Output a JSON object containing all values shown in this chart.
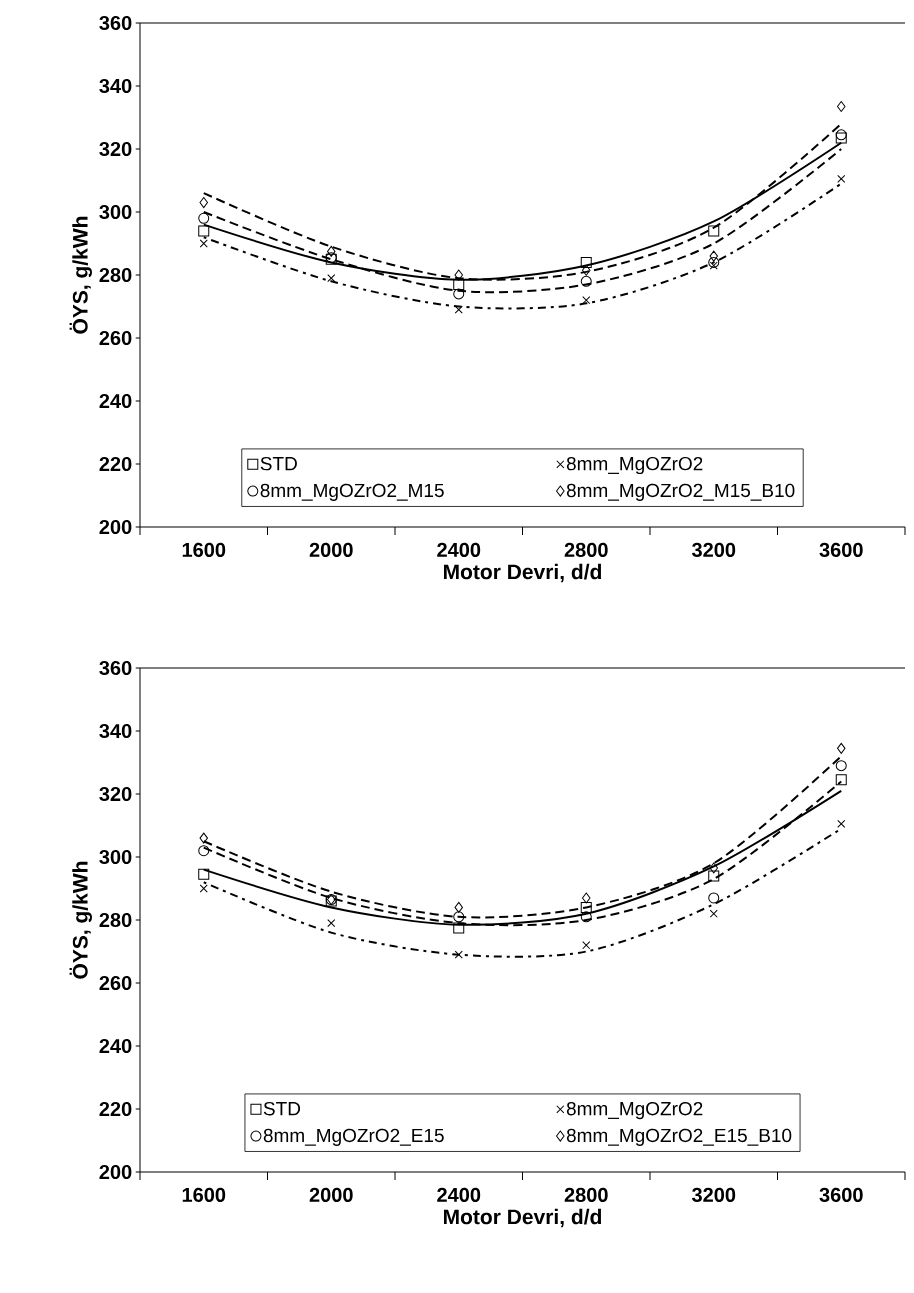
{
  "chart_data": [
    {
      "type": "scatter",
      "xlabel": "Motor Devri, d/d",
      "ylabel": "ÖYS, g/kWh",
      "categories": [
        "1600",
        "2000",
        "2400",
        "2800",
        "3200",
        "3600"
      ],
      "ylim": [
        200,
        360
      ],
      "yticks": [
        200,
        220,
        240,
        260,
        280,
        300,
        320,
        340,
        360
      ],
      "legend": "bottom",
      "series": [
        {
          "name": "STD",
          "color": "#000000",
          "marker": "square",
          "values": [
            294,
            285,
            277,
            284,
            294,
            323.5
          ]
        },
        {
          "name": "8mm_MgOZrO2",
          "color": "#000000",
          "marker": "cross",
          "values": [
            290,
            279,
            269,
            272,
            283,
            310.5
          ]
        },
        {
          "name": "8mm_MgOZrO2_M15",
          "color": "#000000",
          "marker": "circle",
          "values": [
            298,
            285.5,
            274,
            278,
            284,
            324.5
          ]
        },
        {
          "name": "8mm_MgOZrO2_M15_B10",
          "color": "#000000",
          "marker": "diamond",
          "values": [
            303,
            287.5,
            280,
            281.5,
            286,
            333.5
          ]
        },
        {
          "type": "line",
          "color": "#000000",
          "line_style": "solid",
          "values": [
            296,
            284,
            278.5,
            283,
            297,
            322
          ]
        },
        {
          "type": "line",
          "color": "#000000",
          "line_style": "dotted",
          "values": [
            292,
            278,
            270,
            271,
            284,
            309
          ]
        },
        {
          "type": "line",
          "color": "#000000",
          "line_style": "dashed",
          "values": [
            300,
            285,
            275,
            277,
            290,
            320
          ]
        },
        {
          "type": "line",
          "color": "#000000",
          "line_style": "dashed",
          "values": [
            306,
            289,
            279,
            281,
            295,
            328
          ]
        }
      ]
    },
    {
      "type": "scatter",
      "xlabel": "Motor Devri, d/d",
      "ylabel": "ÖYS, g/kWh",
      "categories": [
        "1600",
        "2000",
        "2400",
        "2800",
        "3200",
        "3600"
      ],
      "ylim": [
        200,
        360
      ],
      "yticks": [
        200,
        220,
        240,
        260,
        280,
        300,
        320,
        340,
        360
      ],
      "legend": "bottom",
      "series": [
        {
          "name": "STD",
          "color": "#000000",
          "marker": "square",
          "values": [
            294.5,
            286,
            277.5,
            284,
            294,
            324.5
          ]
        },
        {
          "name": "8mm_MgOZrO2",
          "color": "#000000",
          "marker": "cross",
          "values": [
            290,
            279,
            269,
            272,
            282,
            310.5
          ]
        },
        {
          "name": "8mm_MgOZrO2_E15",
          "color": "#000000",
          "marker": "circle",
          "values": [
            302,
            286.5,
            281,
            281,
            287,
            329
          ]
        },
        {
          "name": "8mm_MgOZrO2_E15_B10",
          "color": "#000000",
          "marker": "diamond",
          "values": [
            306,
            286.5,
            284,
            287,
            296.5,
            334.5
          ]
        },
        {
          "type": "line",
          "color": "#000000",
          "line_style": "solid",
          "values": [
            296,
            284,
            278.5,
            282,
            297,
            321
          ]
        },
        {
          "type": "line",
          "color": "#000000",
          "line_style": "dotted",
          "values": [
            292,
            276,
            269,
            270,
            285,
            309
          ]
        },
        {
          "type": "line",
          "color": "#000000",
          "line_style": "dashed",
          "values": [
            303,
            287,
            279,
            280,
            293,
            324
          ]
        },
        {
          "type": "line",
          "color": "#000000",
          "line_style": "dashed",
          "values": [
            305,
            289,
            281,
            284,
            298,
            332
          ]
        }
      ]
    }
  ]
}
